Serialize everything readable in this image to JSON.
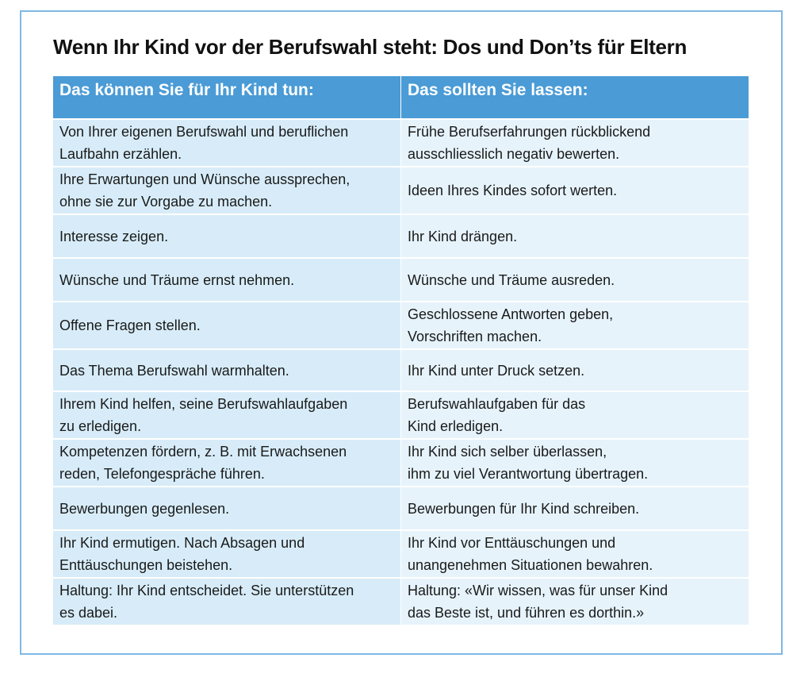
{
  "title": "Wenn Ihr Kind vor der Berufswahl steht: Dos und Don’ts für Eltern",
  "columns": {
    "dos": "Das können Sie für Ihr Kind tun:",
    "donts": "Das sollten Sie lassen:"
  },
  "rows": [
    {
      "do": "Von Ihrer eigenen Berufswahl und beruflichen\nLaufbahn erzählen.",
      "dont": "Frühe Berufserfahrungen rückblickend\nausschliesslich negativ bewerten."
    },
    {
      "do": "Ihre Erwartungen und Wünsche aussprechen,\nohne sie zur Vorgabe zu machen.",
      "dont": "Ideen Ihres Kindes sofort werten."
    },
    {
      "do": "Interesse zeigen.",
      "dont": "Ihr Kind drängen."
    },
    {
      "do": "Wünsche und Träume ernst nehmen.",
      "dont": "Wünsche und Träume ausreden."
    },
    {
      "do": "Offene Fragen stellen.",
      "dont": "Geschlossene Antworten geben,\nVorschriften machen."
    },
    {
      "do": "Das Thema Berufswahl warmhalten.",
      "dont": "Ihr Kind unter Druck setzen."
    },
    {
      "do": "Ihrem Kind helfen, seine Berufswahlaufgaben\nzu erledigen.",
      "dont": "Berufswahlaufgaben für das\nKind erledigen."
    },
    {
      "do": "Kompetenzen fördern, z. B. mit Erwachsenen\nreden, Telefongespräche führen.",
      "dont": "Ihr Kind sich selber überlassen,\nihm zu viel Verantwortung übertragen."
    },
    {
      "do": "Bewerbungen gegenlesen.",
      "dont": "Bewerbungen für Ihr Kind schreiben."
    },
    {
      "do": "Ihr Kind ermutigen. Nach Absagen und\nEnttäuschungen beistehen.",
      "dont": "Ihr Kind vor Enttäuschungen und\nunangenehmen Situationen bewahren."
    },
    {
      "do": "Haltung: Ihr Kind entscheidet. Sie unterstützen\nes dabei.",
      "dont": "Haltung: «Wir wissen, was für unser Kind\ndas Beste ist, und führen es dorthin.»"
    }
  ]
}
